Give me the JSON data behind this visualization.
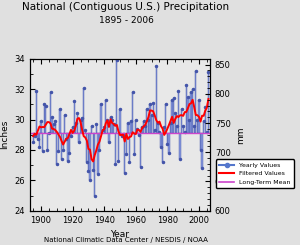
{
  "title": "National (Contiguous U.S.) Precipitation",
  "subtitle": "1895 - 2006",
  "xlabel": "Year",
  "ylabel_left": "Inches",
  "ylabel_right": "mm",
  "footer": "National Climatic Data Center / NESDIS / NOAA",
  "ylim_inches": [
    24.0,
    34.0
  ],
  "ylim_mm": [
    600,
    860
  ],
  "yticks_inches": [
    24.0,
    26.0,
    28.0,
    30.0,
    32.0,
    34.0
  ],
  "yticks_mm": [
    600,
    650,
    700,
    750,
    800,
    850
  ],
  "xlim": [
    1893,
    2007
  ],
  "xticks": [
    1900,
    1920,
    1940,
    1960,
    1980,
    2000
  ],
  "long_term_mean": 29.12,
  "legend_labels": [
    "Yearly Values",
    "Filtered Values",
    "Long-Term Mean"
  ],
  "legend_colors": [
    "#5577cc",
    "#ff0000",
    "#cc44cc"
  ],
  "bar_color": "#8899dd",
  "bar_edge_color": "#4455aa",
  "dot_color": "#4455aa",
  "line_color": "#ff0000",
  "mean_color": "#cc44cc",
  "bg_color": "#e0e0e0",
  "plot_bg": "#e8e8e8",
  "years": [
    1895,
    1896,
    1897,
    1898,
    1899,
    1900,
    1901,
    1902,
    1903,
    1904,
    1905,
    1906,
    1907,
    1908,
    1909,
    1910,
    1911,
    1912,
    1913,
    1914,
    1915,
    1916,
    1917,
    1918,
    1919,
    1920,
    1921,
    1922,
    1923,
    1924,
    1925,
    1926,
    1927,
    1928,
    1929,
    1930,
    1931,
    1932,
    1933,
    1934,
    1935,
    1936,
    1937,
    1938,
    1939,
    1940,
    1941,
    1942,
    1943,
    1944,
    1945,
    1946,
    1947,
    1948,
    1949,
    1950,
    1951,
    1952,
    1953,
    1954,
    1955,
    1956,
    1957,
    1958,
    1959,
    1960,
    1961,
    1962,
    1963,
    1964,
    1965,
    1966,
    1967,
    1968,
    1969,
    1970,
    1971,
    1972,
    1973,
    1974,
    1975,
    1976,
    1977,
    1978,
    1979,
    1980,
    1981,
    1982,
    1983,
    1984,
    1985,
    1986,
    1987,
    1988,
    1989,
    1990,
    1991,
    1992,
    1993,
    1994,
    1995,
    1996,
    1997,
    1998,
    1999,
    2000,
    2001,
    2002,
    2003,
    2004,
    2005,
    2006
  ],
  "precip_inches": [
    28.5,
    28.9,
    31.9,
    28.7,
    28.2,
    29.9,
    27.9,
    31.0,
    30.9,
    28.0,
    29.1,
    31.8,
    30.2,
    29.7,
    29.9,
    27.1,
    27.9,
    30.7,
    27.4,
    28.0,
    30.3,
    28.7,
    27.3,
    27.8,
    28.9,
    29.5,
    31.2,
    29.8,
    30.4,
    28.5,
    30.0,
    30.1,
    32.1,
    29.3,
    27.2,
    26.6,
    26.0,
    29.6,
    26.7,
    25.0,
    29.7,
    26.4,
    28.0,
    31.0,
    29.3,
    29.5,
    31.3,
    30.0,
    28.5,
    30.2,
    30.0,
    29.7,
    27.1,
    33.9,
    27.3,
    30.7,
    28.9,
    29.0,
    26.5,
    27.7,
    29.8,
    27.2,
    29.9,
    31.8,
    27.7,
    30.0,
    29.4,
    29.0,
    26.9,
    29.5,
    29.9,
    29.6,
    30.7,
    30.0,
    31.0,
    30.3,
    31.1,
    29.3,
    33.5,
    29.8,
    29.2,
    28.2,
    27.2,
    29.5,
    31.0,
    28.4,
    27.8,
    29.8,
    31.3,
    31.4,
    30.4,
    29.6,
    31.9,
    27.4,
    30.7,
    29.6,
    29.2,
    32.3,
    31.5,
    30.0,
    31.8,
    32.0,
    29.6,
    33.2,
    30.0,
    31.3,
    28.0,
    26.8,
    29.9,
    30.8,
    29.2,
    33.1
  ]
}
